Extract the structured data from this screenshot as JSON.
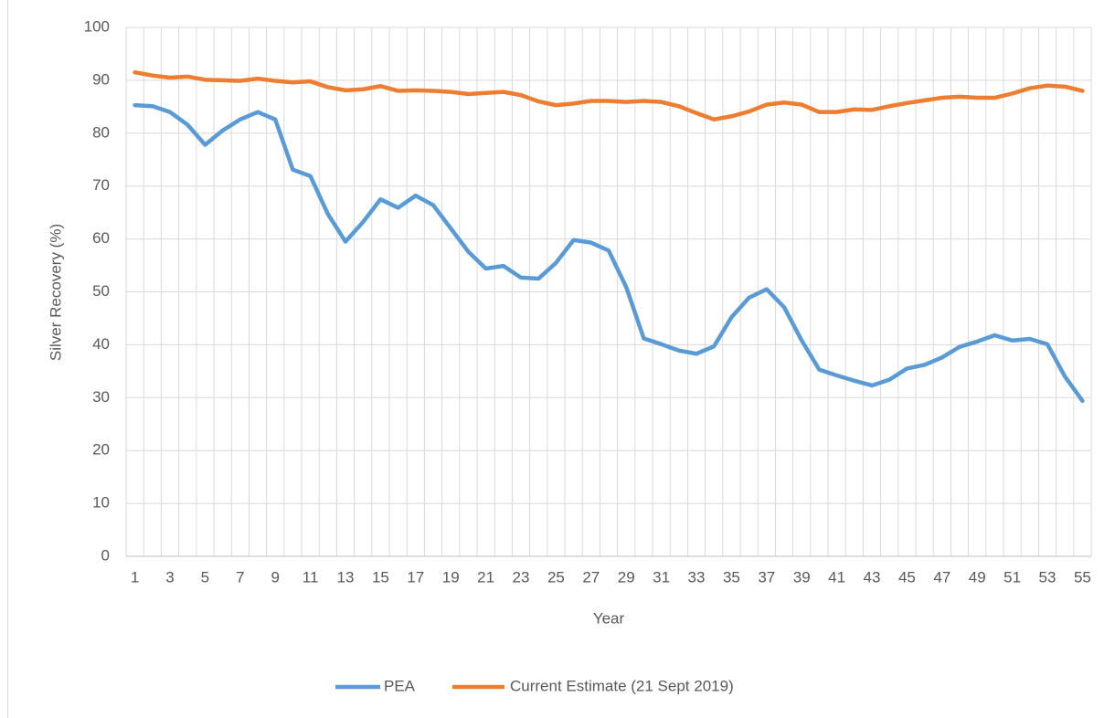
{
  "chart_data": {
    "type": "line",
    "y_label": "Silver Recovery (%)",
    "x_label": "Year",
    "categories": [
      "1",
      null,
      "3",
      null,
      "5",
      null,
      "7",
      null,
      "9",
      null,
      "11",
      null,
      "13",
      null,
      "15",
      null,
      "17",
      null,
      "19",
      null,
      "21",
      null,
      "23",
      null,
      "25",
      null,
      "27",
      null,
      "29",
      null,
      "31",
      null,
      "33",
      null,
      "35",
      null,
      "37",
      null,
      "39",
      null,
      "41",
      null,
      "43",
      null,
      "45",
      null,
      "47",
      null,
      "49",
      null,
      "51",
      null,
      "53",
      null,
      "55"
    ],
    "series": [
      {
        "name": "PEA",
        "color": "#5b9bd5",
        "values": [
          85.3,
          85.1,
          84.0,
          81.6,
          77.8,
          80.5,
          82.6,
          84.0,
          82.6,
          73.1,
          71.9,
          64.7,
          59.5,
          63.2,
          67.5,
          65.9,
          68.2,
          66.4,
          62.0,
          57.6,
          54.4,
          54.9,
          52.7,
          52.5,
          55.5,
          59.8,
          59.3,
          57.8,
          50.9,
          41.2,
          40.1,
          38.9,
          38.3,
          39.7,
          45.2,
          48.9,
          50.5,
          47.1,
          40.8,
          35.3,
          34.2,
          33.2,
          32.3,
          33.4,
          35.5,
          36.2,
          37.6,
          39.6,
          40.6,
          41.8,
          40.8,
          41.1,
          40.1,
          34.0,
          29.4
        ]
      },
      {
        "name": "Current Estimate (21 Sept 2019)",
        "color": "#ed7d31",
        "values": [
          91.5,
          90.9,
          90.5,
          90.7,
          90.1,
          90.0,
          89.9,
          90.3,
          89.9,
          89.6,
          89.8,
          88.7,
          88.1,
          88.3,
          88.9,
          88.0,
          88.1,
          88.0,
          87.8,
          87.4,
          87.6,
          87.8,
          87.2,
          86.0,
          85.3,
          85.6,
          86.1,
          86.1,
          85.9,
          86.1,
          85.9,
          85.1,
          83.8,
          82.6,
          83.2,
          84.1,
          85.4,
          85.8,
          85.4,
          84.0,
          84.0,
          84.5,
          84.4,
          85.1,
          85.7,
          86.2,
          86.7,
          86.9,
          86.7,
          86.7,
          87.5,
          88.5,
          89.0,
          88.8,
          88.0
        ]
      }
    ],
    "ylim": [
      0,
      100
    ],
    "yticks": [
      0,
      10,
      20,
      30,
      40,
      50,
      60,
      70,
      80,
      90,
      100
    ],
    "grid": true,
    "legend": "bottom"
  }
}
